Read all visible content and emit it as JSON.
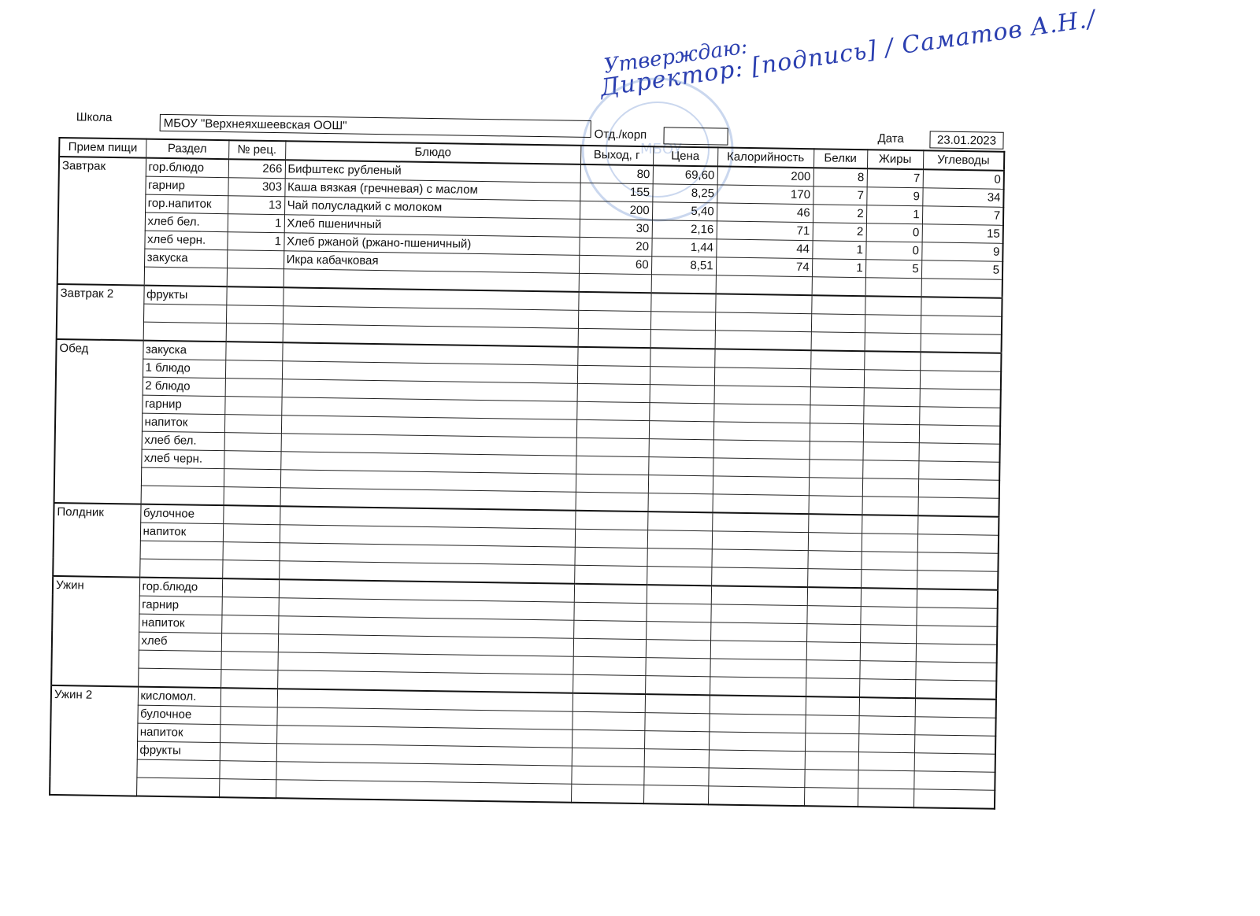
{
  "approval": {
    "line1": "Утверждаю:",
    "line2": "Директор: [подпись] / Саматов А.Н./"
  },
  "stamp": {
    "text": "МБОУ",
    "color": "#6a8fd0"
  },
  "header": {
    "school_label": "Школа",
    "school": "МБОУ \"Верхнеяхшеевская ООШ\"",
    "dept_label": "Отд./корп",
    "dept": "",
    "date_label": "Дата",
    "date": "23.01.2023"
  },
  "columns": [
    "Прием пищи",
    "Раздел",
    "№ рец.",
    "Блюдо",
    "Выход, г",
    "Цена",
    "Калорийность",
    "Белки",
    "Жиры",
    "Углеводы"
  ],
  "sections": [
    {
      "meal": "Завтрак",
      "rows": [
        [
          "гор.блюдо",
          "266",
          "Бифштекс рубленый",
          "80",
          "69,60",
          "200",
          "8",
          "7",
          "0"
        ],
        [
          "гарнир",
          "303",
          "Каша вязкая (гречневая) с маслом",
          "155",
          "8,25",
          "170",
          "7",
          "9",
          "34"
        ],
        [
          "гор.напиток",
          "13",
          "Чай полусладкий с молоком",
          "200",
          "5,40",
          "46",
          "2",
          "1",
          "7"
        ],
        [
          "хлеб бел.",
          "1",
          "Хлеб пшеничный",
          "30",
          "2,16",
          "71",
          "2",
          "0",
          "15"
        ],
        [
          "хлеб черн.",
          "1",
          "Хлеб ржаной (ржано-пшеничный)",
          "20",
          "1,44",
          "44",
          "1",
          "0",
          "9"
        ],
        [
          "закуска",
          "",
          "Икра кабачковая",
          "60",
          "8,51",
          "74",
          "1",
          "5",
          "5"
        ],
        [
          "",
          "",
          "",
          "",
          "",
          "",
          "",
          "",
          ""
        ]
      ]
    },
    {
      "meal": "Завтрак 2",
      "rows": [
        [
          "фрукты"
        ],
        [
          ""
        ],
        [
          ""
        ]
      ]
    },
    {
      "meal": "Обед",
      "rows": [
        [
          "закуска"
        ],
        [
          "1 блюдо"
        ],
        [
          "2 блюдо"
        ],
        [
          "гарнир"
        ],
        [
          "напиток"
        ],
        [
          "хлеб бел."
        ],
        [
          "хлеб черн."
        ],
        [
          ""
        ],
        [
          ""
        ]
      ]
    },
    {
      "meal": "Полдник",
      "rows": [
        [
          "булочное"
        ],
        [
          "напиток"
        ],
        [
          ""
        ],
        [
          ""
        ]
      ]
    },
    {
      "meal": "Ужин",
      "rows": [
        [
          "гор.блюдо"
        ],
        [
          "гарнир"
        ],
        [
          "напиток"
        ],
        [
          "хлеб"
        ],
        [
          ""
        ],
        [
          ""
        ]
      ]
    },
    {
      "meal": "Ужин 2",
      "rows": [
        [
          "кисломол."
        ],
        [
          "булочное"
        ],
        [
          "напиток"
        ],
        [
          "фрукты"
        ],
        [
          ""
        ],
        [
          ""
        ]
      ]
    }
  ]
}
